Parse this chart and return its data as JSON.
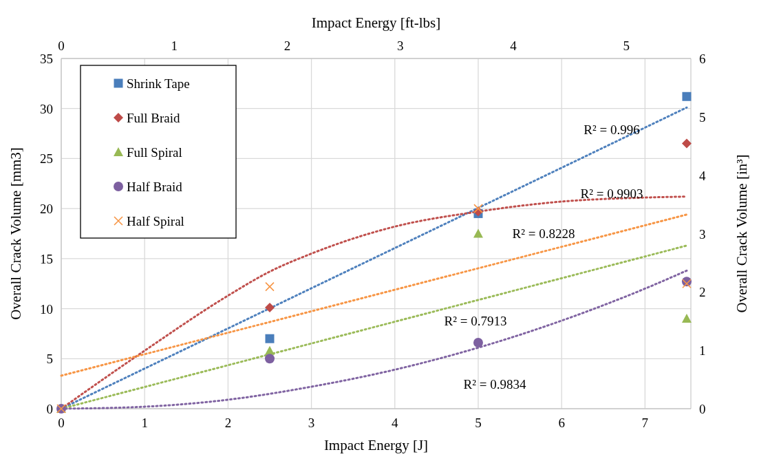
{
  "chart_data": {
    "type": "scatter",
    "xlabel": "Impact Energy [J]",
    "ylabel": "Overall Crack Volume [mm3]",
    "x2label": "Impact Energy [ft-lbs]",
    "y2label": "Overall Crack Volume [in³]",
    "xlim": [
      0,
      7.55
    ],
    "xticks": [
      0,
      1,
      2,
      3,
      4,
      5,
      6,
      7
    ],
    "ylim": [
      0,
      35
    ],
    "yticks": [
      0,
      5,
      10,
      15,
      20,
      25,
      30,
      35
    ],
    "x2lim": [
      0,
      5.57
    ],
    "x2ticks": [
      0,
      1,
      2,
      3,
      4,
      5
    ],
    "y2lim": [
      0,
      6
    ],
    "y2ticks": [
      0,
      1,
      2,
      3,
      4,
      5,
      6
    ],
    "grid": true,
    "legend": "top left",
    "series": [
      {
        "name": "Shrink Tape",
        "type": "scatter",
        "marker": "square",
        "color": "#4a7ebb",
        "x": [
          2.5,
          5,
          7.5
        ],
        "values": [
          7.0,
          19.5,
          31.2
        ]
      },
      {
        "name": "Full Braid",
        "type": "scatter",
        "marker": "diamond",
        "color": "#be4b48",
        "x": [
          2.5,
          5,
          7.5
        ],
        "values": [
          10.1,
          19.7,
          26.5
        ]
      },
      {
        "name": "Full Spiral",
        "type": "scatter",
        "marker": "triangle",
        "color": "#98b954",
        "x": [
          0,
          2.5,
          5,
          7.5
        ],
        "values": [
          0,
          5.8,
          17.5,
          9.0
        ]
      },
      {
        "name": "Half Braid",
        "type": "scatter",
        "marker": "circle",
        "color": "#7d60a0",
        "x": [
          0,
          2.5,
          5,
          7.5
        ],
        "values": [
          0,
          5.0,
          6.6,
          12.7
        ]
      },
      {
        "name": "Half Spiral",
        "type": "scatter",
        "marker": "cross",
        "color": "#f79646",
        "x": [
          0,
          2.5,
          5,
          7.5
        ],
        "values": [
          0,
          12.2,
          20.0,
          12.5
        ]
      },
      {
        "type": "line",
        "line_style": "dotted",
        "color": "#4f81bd",
        "x": [
          0,
          7.5
        ],
        "values": [
          0,
          30.1
        ]
      },
      {
        "type": "line",
        "line_style": "dotted",
        "color": "#c0504d",
        "x": [
          0,
          1,
          2,
          2.5,
          3,
          4,
          5,
          6,
          7,
          7.5
        ],
        "values": [
          0,
          5.8,
          11.3,
          13.7,
          15.5,
          18.2,
          19.7,
          20.7,
          21.1,
          21.2
        ]
      },
      {
        "type": "line",
        "line_style": "dotted",
        "color": "#9bbb59",
        "x": [
          0,
          7.5
        ],
        "values": [
          0,
          16.3
        ]
      },
      {
        "type": "line",
        "line_style": "dotted",
        "color": "#8064a2",
        "x": [
          0,
          1,
          2,
          3,
          4,
          5,
          6,
          7,
          7.5
        ],
        "values": [
          0,
          0.2,
          0.9,
          2.2,
          3.9,
          6.1,
          8.8,
          12.0,
          13.8
        ]
      },
      {
        "type": "line",
        "line_style": "dotted",
        "color": "#f79646",
        "x": [
          0,
          7.5
        ],
        "values": [
          3.3,
          19.4
        ]
      }
    ],
    "annotations": [
      "R² = 0.996",
      "R² = 0.9903",
      "R² = 0.8228",
      "R² = 0.7913",
      "R² = 0.9834"
    ]
  }
}
